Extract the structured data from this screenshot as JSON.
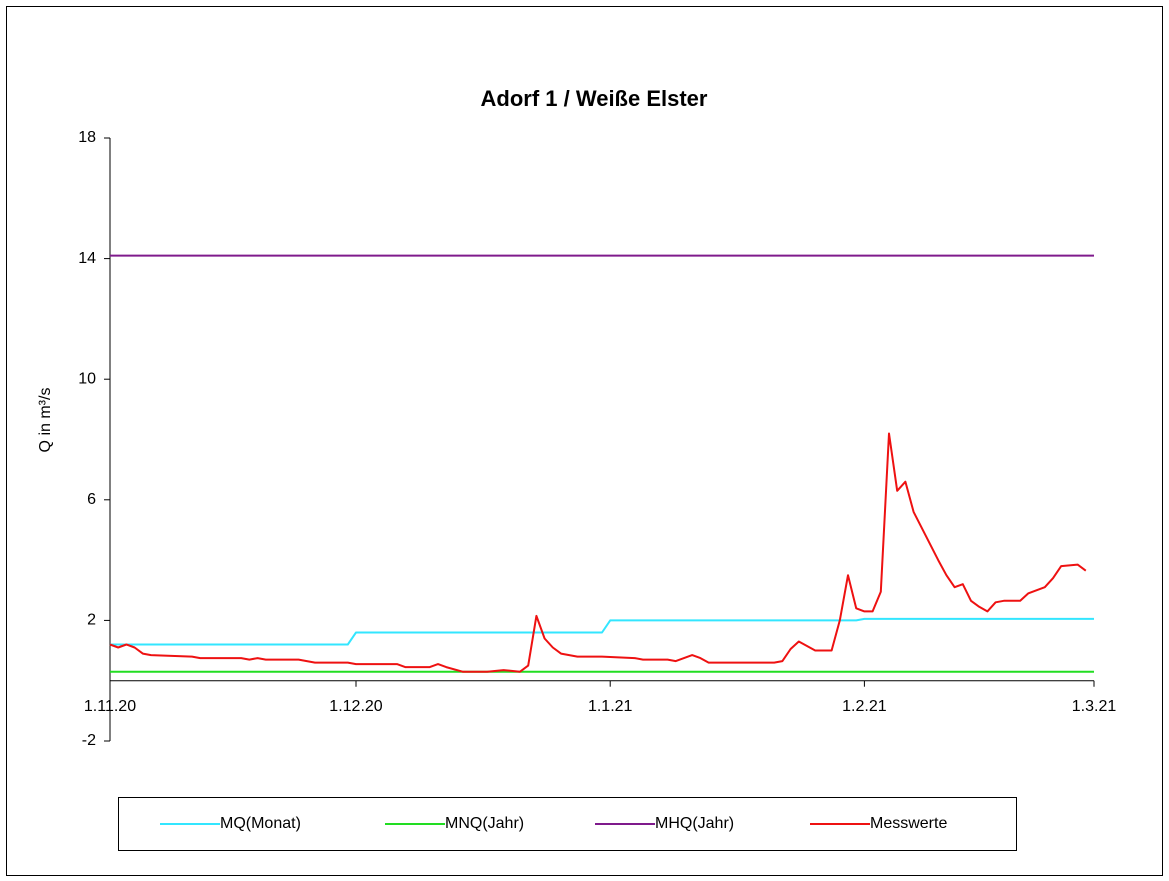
{
  "chart_data": {
    "type": "line",
    "title": "Adorf 1 / Weiße Elster",
    "y_label": "Q in m³/s",
    "xlim": [
      "2020-11-01",
      "2021-03-01"
    ],
    "xticks": [
      {
        "value": "2020-11-01",
        "label": "1.11.20"
      },
      {
        "value": "2020-12-01",
        "label": "1.12.20"
      },
      {
        "value": "2021-01-01",
        "label": "1.1.21"
      },
      {
        "value": "2021-02-01",
        "label": "1.2.21"
      },
      {
        "value": "2021-03-01",
        "label": "1.3.21"
      }
    ],
    "ylim": [
      -2,
      18
    ],
    "yticks": [
      -2,
      2,
      6,
      10,
      14,
      18
    ],
    "grid": false,
    "legend": "bottom",
    "series": [
      {
        "name": "MQ(Monat)",
        "color": "#33e6ff",
        "x": [
          "2020-11-01",
          "2020-11-30",
          "2020-12-01",
          "2020-12-31",
          "2021-01-01",
          "2021-01-31",
          "2021-02-01",
          "2021-03-01"
        ],
        "values": [
          1.2,
          1.2,
          1.6,
          1.6,
          2.0,
          2.0,
          2.05,
          2.05
        ]
      },
      {
        "name": "MNQ(Jahr)",
        "color": "#22dd22",
        "x": [
          "2020-11-01",
          "2021-03-01"
        ],
        "values": [
          0.3,
          0.3
        ]
      },
      {
        "name": "MHQ(Jahr)",
        "color": "#7f1a8c",
        "x": [
          "2020-11-01",
          "2021-03-01"
        ],
        "values": [
          14.1,
          14.1
        ]
      },
      {
        "name": "Messwerte",
        "color": "#ee1111",
        "x": [
          "2020-11-01",
          "2020-11-02",
          "2020-11-03",
          "2020-11-04",
          "2020-11-05",
          "2020-11-06",
          "2020-11-11",
          "2020-11-12",
          "2020-11-17",
          "2020-11-18",
          "2020-11-19",
          "2020-11-20",
          "2020-11-24",
          "2020-11-26",
          "2020-11-30",
          "2020-12-01",
          "2020-12-06",
          "2020-12-07",
          "2020-12-10",
          "2020-12-11",
          "2020-12-12",
          "2020-12-14",
          "2020-12-17",
          "2020-12-19",
          "2020-12-21",
          "2020-12-22",
          "2020-12-23",
          "2020-12-24",
          "2020-12-25",
          "2020-12-26",
          "2020-12-28",
          "2020-12-31",
          "2021-01-04",
          "2021-01-05",
          "2021-01-08",
          "2021-01-09",
          "2021-01-11",
          "2021-01-12",
          "2021-01-13",
          "2021-01-21",
          "2021-01-22",
          "2021-01-23",
          "2021-01-24",
          "2021-01-25",
          "2021-01-26",
          "2021-01-28",
          "2021-01-29",
          "2021-01-30",
          "2021-01-31",
          "2021-02-01",
          "2021-02-02",
          "2021-02-03",
          "2021-02-04",
          "2021-02-05",
          "2021-02-06",
          "2021-02-07",
          "2021-02-10",
          "2021-02-11",
          "2021-02-12",
          "2021-02-13",
          "2021-02-14",
          "2021-02-15",
          "2021-02-16",
          "2021-02-17",
          "2021-02-18",
          "2021-02-20",
          "2021-02-21",
          "2021-02-23",
          "2021-02-24",
          "2021-02-25",
          "2021-02-27",
          "2021-02-28"
        ],
        "values": [
          1.2,
          1.1,
          1.2,
          1.1,
          0.9,
          0.85,
          0.8,
          0.75,
          0.75,
          0.7,
          0.75,
          0.7,
          0.7,
          0.6,
          0.6,
          0.55,
          0.55,
          0.45,
          0.45,
          0.55,
          0.45,
          0.3,
          0.3,
          0.35,
          0.3,
          0.5,
          2.15,
          1.4,
          1.1,
          0.9,
          0.8,
          0.8,
          0.75,
          0.7,
          0.7,
          0.65,
          0.85,
          0.75,
          0.6,
          0.6,
          0.65,
          1.05,
          1.3,
          1.15,
          1.0,
          1.0,
          2.0,
          3.5,
          2.4,
          2.3,
          2.3,
          2.95,
          8.2,
          6.3,
          6.6,
          5.6,
          4.0,
          3.5,
          3.1,
          3.2,
          2.65,
          2.45,
          2.3,
          2.6,
          2.65,
          2.65,
          2.9,
          3.1,
          3.4,
          3.8,
          3.85,
          3.65
        ]
      }
    ]
  }
}
